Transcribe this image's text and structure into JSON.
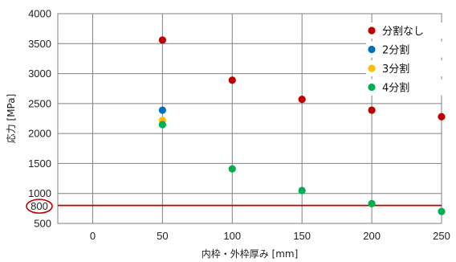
{
  "chart_data": {
    "type": "scatter",
    "title": "",
    "xlabel": "内枠・外枠厚み [mm]",
    "ylabel": "応力 [MPa]",
    "xlim": [
      -25,
      250
    ],
    "ylim": [
      500,
      4000
    ],
    "xticks": [
      0,
      50,
      100,
      150,
      200,
      250
    ],
    "yticks": [
      500,
      1000,
      1500,
      2000,
      2500,
      3000,
      3500,
      4000
    ],
    "grid": true,
    "legend_position": "top-right",
    "series": [
      {
        "name": "分割なし",
        "color": "#c00000",
        "points": [
          [
            50,
            3560
          ],
          [
            100,
            2890
          ],
          [
            150,
            2570
          ],
          [
            200,
            2390
          ],
          [
            250,
            2280
          ]
        ]
      },
      {
        "name": "2分割",
        "color": "#0070c0",
        "points": [
          [
            50,
            2390
          ]
        ]
      },
      {
        "name": "3分割",
        "color": "#ffc000",
        "points": [
          [
            50,
            2220
          ]
        ]
      },
      {
        "name": "4分割",
        "color": "#00b050",
        "points": [
          [
            50,
            2150
          ],
          [
            100,
            1410
          ],
          [
            150,
            1050
          ],
          [
            200,
            830
          ],
          [
            250,
            700
          ]
        ]
      }
    ],
    "reference_line": {
      "y": 800,
      "color": "#c00000"
    },
    "annotation_label": "800"
  }
}
